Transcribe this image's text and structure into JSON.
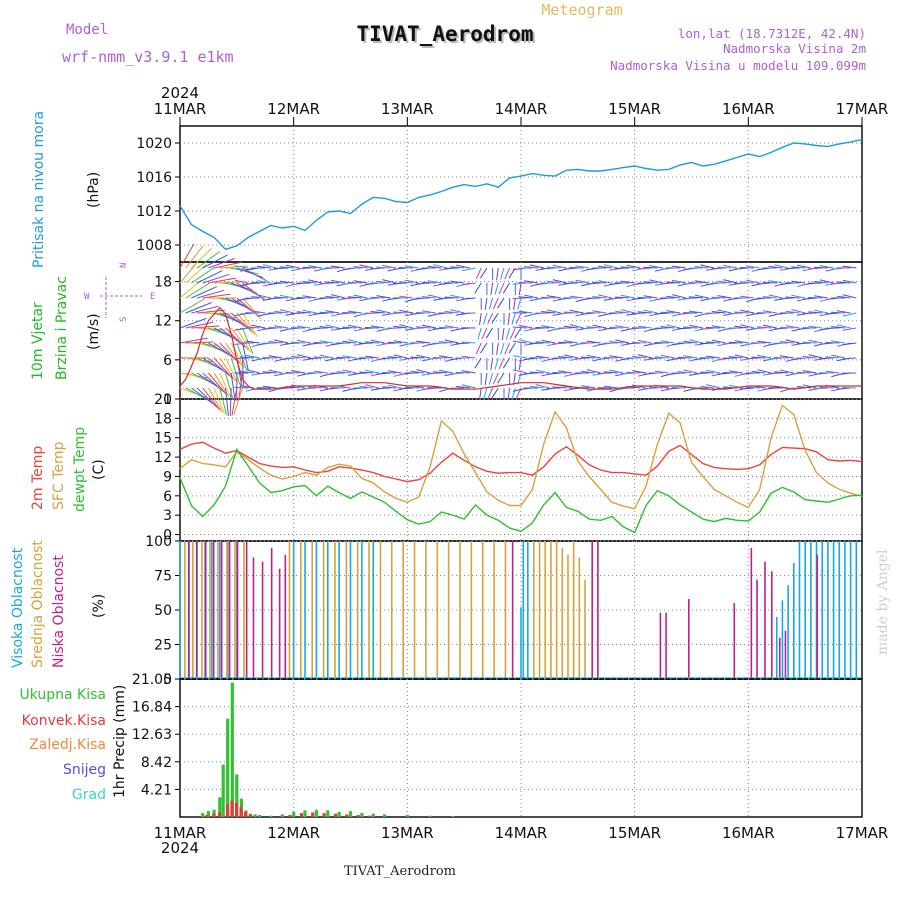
{
  "header": {
    "model_label": "Model",
    "model_name": "wrf-nmm_v3.9.1 e1km",
    "chart_kind": "Meteogram",
    "title": "TIVAT_Aerodrom",
    "location_line": "lon,lat (18.7312E, 42.4N)",
    "elevation_line": "Nadmorska Visina 2m",
    "model_elevation_line": "Nadmorska Visina u modelu 109.099m",
    "year": "2024",
    "footer_title": "TIVAT_Aerodrom",
    "watermark": "made by Angel"
  },
  "colors": {
    "pressure": "#1e9be0",
    "temp2m": "#e8453c",
    "sfc_temp": "#d8a140",
    "dewpt": "#2fc02f",
    "high_cloud": "#1aa7e8",
    "mid_cloud": "#d4a33a",
    "low_cloud": "#c0208a",
    "precip_total": "#33c133",
    "precip_convective": "#e33c3c",
    "precip_frozen": "#f08a3c",
    "snow": "#5050e0",
    "hail": "#3fcfcf",
    "model_text": "#b060d0",
    "wind_label": "#22b822"
  },
  "chart_data": [
    {
      "type": "line",
      "panel": "pressure",
      "ylabel": [
        "Pritisak na nivou mora",
        "(hPa)"
      ],
      "x_ticks": [
        "11MAR",
        "12MAR",
        "13MAR",
        "14MAR",
        "15MAR",
        "16MAR",
        "17MAR"
      ],
      "ylim": [
        1006,
        1022
      ],
      "yticks": [
        1008,
        1012,
        1016,
        1020
      ],
      "grid": true,
      "series": [
        {
          "x": [
            0,
            0.1,
            0.2,
            0.3,
            0.4,
            0.5,
            0.6,
            0.7,
            0.8,
            0.9,
            1.0,
            1.1,
            1.2,
            1.3,
            1.4,
            1.5,
            1.6,
            1.7,
            1.8,
            1.9,
            2.0,
            2.1,
            2.2,
            2.3,
            2.4,
            2.5,
            2.6,
            2.7,
            2.8,
            2.9,
            3.0,
            3.1,
            3.2,
            3.3,
            3.4,
            3.5,
            3.6,
            3.7,
            3.8,
            3.9,
            4.0,
            4.1,
            4.2,
            4.3,
            4.4,
            4.5,
            4.6,
            4.7,
            4.8,
            4.9,
            5.0,
            5.1,
            5.2,
            5.3,
            5.4,
            5.5,
            5.6,
            5.7,
            5.8,
            5.9,
            6.0
          ],
          "values": [
            1012.6,
            1010.4,
            1009.6,
            1008.9,
            1007.5,
            1007.9,
            1008.9,
            1009.6,
            1010.3,
            1010.0,
            1010.2,
            1009.7,
            1010.9,
            1011.9,
            1012.0,
            1011.7,
            1012.8,
            1013.6,
            1013.5,
            1013.1,
            1013.0,
            1013.6,
            1013.9,
            1014.3,
            1014.8,
            1015.1,
            1014.9,
            1015.2,
            1014.8,
            1015.9,
            1016.1,
            1016.4,
            1016.2,
            1016.1,
            1016.8,
            1016.9,
            1016.7,
            1016.7,
            1016.9,
            1017.1,
            1017.3,
            1017.0,
            1016.8,
            1016.9,
            1017.4,
            1017.7,
            1017.3,
            1017.5,
            1017.9,
            1018.3,
            1018.7,
            1018.4,
            1018.9,
            1019.5,
            1020.0,
            1019.9,
            1019.7,
            1019.6,
            1019.9,
            1020.1,
            1020.4
          ]
        }
      ]
    },
    {
      "type": "line",
      "panel": "wind",
      "ylabel": [
        "10m Vjetar",
        "Brzina i Pravac",
        "(m/s)"
      ],
      "compass": {
        "n": "N",
        "s": "S",
        "e": "E",
        "w": "W"
      },
      "ylim": [
        0,
        21
      ],
      "yticks": [
        0,
        6,
        12,
        18
      ],
      "series": [
        {
          "x": [
            0,
            0.05,
            0.1,
            0.15,
            0.2,
            0.25,
            0.3,
            0.35,
            0.4,
            0.45,
            0.5,
            0.55,
            0.6,
            0.65,
            0.7,
            0.8,
            1.0,
            1.2,
            1.4,
            1.6,
            1.8,
            2.0,
            2.2,
            2.4,
            2.6,
            2.8,
            3.0,
            3.2,
            3.4,
            3.6,
            3.8,
            4.0,
            4.2,
            4.4,
            4.6,
            4.8,
            5.0,
            5.2,
            5.4,
            5.6,
            5.8,
            6.0
          ],
          "values": [
            2,
            3,
            5,
            7,
            10,
            12,
            13,
            14,
            13,
            10,
            6,
            3,
            2,
            1.5,
            1.5,
            1.5,
            2,
            2,
            2,
            2.5,
            2.5,
            2,
            2,
            1.5,
            1.5,
            2,
            2.5,
            2.5,
            2,
            1.5,
            1.5,
            2,
            2,
            2,
            1.5,
            1.5,
            2,
            2,
            1.5,
            2,
            2,
            2
          ]
        }
      ]
    },
    {
      "type": "line",
      "panel": "temperature",
      "ylabel": [
        "2m Temp",
        "SFC Temp",
        "dewpt Temp",
        "(C)"
      ],
      "ylim": [
        -1,
        21
      ],
      "yticks": [
        0,
        3,
        6,
        9,
        12,
        15,
        18,
        21
      ],
      "series": [
        {
          "name": "2m Temp",
          "x": [
            0,
            0.1,
            0.2,
            0.3,
            0.4,
            0.5,
            0.6,
            0.7,
            0.8,
            0.9,
            1.0,
            1.1,
            1.2,
            1.3,
            1.4,
            1.5,
            1.6,
            1.7,
            1.8,
            1.9,
            2.0,
            2.1,
            2.2,
            2.3,
            2.4,
            2.5,
            2.6,
            2.7,
            2.8,
            2.9,
            3.0,
            3.1,
            3.2,
            3.3,
            3.4,
            3.5,
            3.6,
            3.7,
            3.8,
            3.9,
            4.0,
            4.1,
            4.2,
            4.3,
            4.4,
            4.5,
            4.6,
            4.7,
            4.8,
            4.9,
            5.0,
            5.1,
            5.2,
            5.3,
            5.4,
            5.5,
            5.6,
            5.7,
            5.8,
            5.9,
            6.0
          ],
          "values": [
            13.2,
            14.0,
            14.3,
            13.4,
            12.6,
            13.0,
            12.0,
            11.0,
            10.6,
            10.4,
            10.5,
            10.0,
            9.6,
            9.8,
            10.5,
            10.3,
            10.0,
            9.6,
            9.0,
            8.6,
            8.2,
            8.5,
            9.5,
            11.2,
            12.6,
            11.5,
            10.5,
            9.8,
            9.5,
            9.6,
            9.6,
            9.2,
            10.5,
            12.5,
            13.6,
            12.3,
            10.8,
            10.0,
            9.6,
            9.6,
            9.4,
            9.2,
            10.6,
            12.9,
            13.8,
            12.4,
            11.0,
            10.4,
            10.2,
            10.1,
            10.2,
            10.8,
            12.4,
            13.5,
            13.4,
            13.3,
            12.8,
            11.6,
            11.4,
            11.5,
            11.3
          ]
        },
        {
          "name": "SFC Temp",
          "x": [
            0,
            0.1,
            0.2,
            0.3,
            0.4,
            0.5,
            0.6,
            0.7,
            0.8,
            0.9,
            1.0,
            1.1,
            1.2,
            1.3,
            1.4,
            1.5,
            1.6,
            1.7,
            1.8,
            1.9,
            2.0,
            2.1,
            2.2,
            2.3,
            2.4,
            2.5,
            2.6,
            2.7,
            2.8,
            2.9,
            3.0,
            3.1,
            3.2,
            3.3,
            3.4,
            3.5,
            3.6,
            3.7,
            3.8,
            3.9,
            4.0,
            4.1,
            4.2,
            4.3,
            4.4,
            4.5,
            4.6,
            4.7,
            4.8,
            4.9,
            5.0,
            5.1,
            5.2,
            5.3,
            5.4,
            5.5,
            5.6,
            5.7,
            5.8,
            5.9,
            6.0
          ],
          "values": [
            10.2,
            11.6,
            11.0,
            10.8,
            10.5,
            12.8,
            11.6,
            10.3,
            9.2,
            8.6,
            9.0,
            9.6,
            9.2,
            10.4,
            10.9,
            10.6,
            8.7,
            8.0,
            6.6,
            5.6,
            5.0,
            5.8,
            10.5,
            17.6,
            16.0,
            12.5,
            9.6,
            6.6,
            5.3,
            4.5,
            4.5,
            7.0,
            14.0,
            19.0,
            16.5,
            11.4,
            9.0,
            7.0,
            5.0,
            4.4,
            4.0,
            7.5,
            14.0,
            18.8,
            17.3,
            11.2,
            9.0,
            7.0,
            6.0,
            5.0,
            4.2,
            7.0,
            15.0,
            20.0,
            18.6,
            13.0,
            9.6,
            8.0,
            7.0,
            6.4,
            5.9
          ]
        },
        {
          "name": "dewpt Temp",
          "x": [
            0,
            0.1,
            0.2,
            0.3,
            0.4,
            0.5,
            0.6,
            0.7,
            0.8,
            0.9,
            1.0,
            1.1,
            1.2,
            1.3,
            1.4,
            1.5,
            1.6,
            1.7,
            1.8,
            1.9,
            2.0,
            2.1,
            2.2,
            2.3,
            2.4,
            2.5,
            2.6,
            2.7,
            2.8,
            2.9,
            3.0,
            3.1,
            3.2,
            3.3,
            3.4,
            3.5,
            3.6,
            3.7,
            3.8,
            3.9,
            4.0,
            4.1,
            4.2,
            4.3,
            4.4,
            4.5,
            4.6,
            4.7,
            4.8,
            4.9,
            5.0,
            5.1,
            5.2,
            5.3,
            5.4,
            5.5,
            5.6,
            5.7,
            5.8,
            5.9,
            6.0
          ],
          "values": [
            8.8,
            4.5,
            2.8,
            4.6,
            7.5,
            13.2,
            10.6,
            8.0,
            6.5,
            6.8,
            7.4,
            7.6,
            6.0,
            7.5,
            6.5,
            5.6,
            6.6,
            5.8,
            5.0,
            3.6,
            2.3,
            1.6,
            2.0,
            3.5,
            3.0,
            2.4,
            4.6,
            3.0,
            2.2,
            1.0,
            0.5,
            1.8,
            4.6,
            6.5,
            4.2,
            3.6,
            2.4,
            2.2,
            2.8,
            1.2,
            0.3,
            4.5,
            6.8,
            6.0,
            4.6,
            3.5,
            2.4,
            2.0,
            2.5,
            2.2,
            2.1,
            3.5,
            6.4,
            7.3,
            6.6,
            5.4,
            5.2,
            5.0,
            5.5,
            6.0,
            6.1
          ]
        }
      ]
    },
    {
      "type": "bar",
      "panel": "clouds",
      "ylabel": [
        "Visoka Oblacnost",
        "Srednja Oblacnost",
        "Niska Oblacnost",
        "(%)"
      ],
      "ylim": [
        0,
        100
      ],
      "yticks": [
        0,
        25,
        50,
        75,
        100
      ],
      "series": [
        {
          "name": "Visoka Oblacnost",
          "x": [
            0.0,
            0.08,
            0.15,
            0.22,
            0.28,
            0.35,
            0.42,
            0.5,
            1.0,
            1.1,
            1.2,
            1.3,
            1.4,
            1.5,
            1.6,
            1.7,
            3.0,
            3.02,
            3.06,
            5.25,
            5.3,
            5.35,
            5.4,
            5.45,
            5.5,
            5.55,
            5.6,
            5.65,
            5.7,
            5.75,
            5.8,
            5.85,
            5.9,
            5.95
          ],
          "values": [
            100,
            100,
            100,
            100,
            100,
            100,
            100,
            100,
            100,
            100,
            100,
            100,
            100,
            100,
            100,
            100,
            52,
            100,
            100,
            45,
            57,
            68,
            84,
            100,
            100,
            100,
            100,
            100,
            100,
            100,
            100,
            100,
            100,
            100
          ]
        },
        {
          "name": "Srednja Oblacnost",
          "x": [
            0.03,
            0.1,
            0.18,
            0.25,
            0.32,
            0.4,
            0.47,
            0.55,
            0.95,
            1.05,
            1.15,
            1.25,
            1.35,
            1.45,
            1.55,
            1.65,
            1.75,
            1.85,
            1.95,
            2.05,
            2.15,
            2.25,
            2.35,
            2.45,
            2.55,
            2.65,
            2.75,
            2.85,
            3.1,
            3.15,
            3.2,
            3.25,
            3.3,
            3.35,
            3.4,
            3.45,
            3.5,
            3.55
          ],
          "values": [
            100,
            100,
            100,
            100,
            100,
            100,
            100,
            100,
            100,
            100,
            100,
            100,
            100,
            100,
            100,
            100,
            100,
            100,
            100,
            100,
            100,
            100,
            100,
            100,
            100,
            100,
            100,
            100,
            100,
            100,
            100,
            100,
            100,
            95,
            90,
            100,
            88,
            72
          ]
        },
        {
          "name": "Niska Oblacnost",
          "x": [
            0.05,
            0.12,
            0.2,
            0.27,
            0.34,
            0.41,
            0.48,
            0.56,
            0.62,
            0.7,
            0.78,
            0.85,
            0.9,
            2.9,
            3.6,
            3.65,
            4.2,
            4.25,
            4.45,
            4.85,
            5.0,
            5.05,
            5.12,
            5.18,
            5.25,
            5.3,
            5.58
          ],
          "values": [
            100,
            100,
            100,
            100,
            100,
            100,
            100,
            100,
            88,
            85,
            95,
            80,
            90,
            100,
            100,
            100,
            48,
            48,
            58,
            55,
            95,
            72,
            85,
            78,
            30,
            35,
            90
          ]
        }
      ]
    },
    {
      "type": "bar",
      "panel": "precipitation",
      "ylabel": [
        "1hr Precip (mm)"
      ],
      "legend": [
        "Ukupna Kisa",
        "Konvek.Kisa",
        "Zaledj.Kisa",
        "Snijeg",
        "Grad"
      ],
      "ylim": [
        0,
        21.05
      ],
      "yticks": [
        4.21,
        8.42,
        12.63,
        16.84,
        21.05
      ],
      "series": [
        {
          "name": "Ukupna Kisa",
          "x": [
            0.2,
            0.25,
            0.3,
            0.35,
            0.38,
            0.42,
            0.46,
            0.5,
            0.54,
            0.58,
            0.62,
            0.66,
            0.7,
            0.8,
            0.9,
            1.0,
            1.1,
            1.2,
            1.3,
            1.4,
            1.5,
            1.6,
            1.7,
            1.8,
            2.0,
            2.2,
            2.4
          ],
          "values": [
            0.6,
            0.9,
            1.1,
            3.0,
            8.0,
            15.0,
            20.5,
            6.5,
            2.8,
            1.0,
            0.5,
            0.4,
            0.3,
            0.2,
            0.4,
            0.8,
            1.0,
            1.1,
            1.0,
            0.8,
            0.9,
            0.6,
            0.5,
            0.4,
            0.3,
            0.2,
            0.1
          ]
        },
        {
          "name": "Konvek.Kisa",
          "x": [
            0.22,
            0.28,
            0.33,
            0.4,
            0.44,
            0.48,
            0.52,
            0.56,
            0.6,
            0.95,
            1.05,
            1.15,
            1.25,
            1.35,
            1.45,
            1.55,
            1.65
          ],
          "values": [
            0.3,
            0.5,
            0.7,
            2.0,
            2.5,
            2.2,
            1.5,
            0.8,
            0.4,
            0.3,
            0.6,
            0.7,
            0.6,
            0.5,
            0.4,
            0.3,
            0.2
          ]
        }
      ]
    }
  ]
}
